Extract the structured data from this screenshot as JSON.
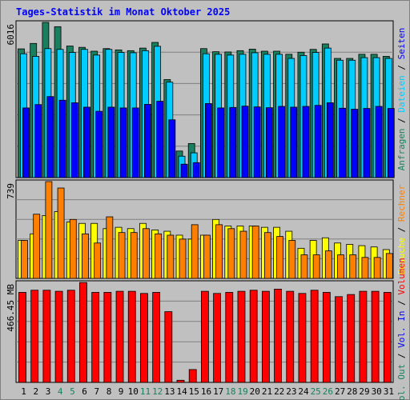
{
  "chart_data": [
    {
      "type": "bar",
      "title": "Tages-Statistik im Monat Oktober 2025",
      "ylabel_max": "6016",
      "ylim": [
        0,
        6016
      ],
      "categories": [
        "1",
        "2",
        "3",
        "4",
        "5",
        "6",
        "7",
        "8",
        "9",
        "10",
        "11",
        "12",
        "13",
        "14",
        "15",
        "16",
        "17",
        "18",
        "19",
        "20",
        "21",
        "22",
        "23",
        "24",
        "25",
        "26",
        "27",
        "28",
        "29",
        "30",
        "31"
      ],
      "weekend_days": [
        "4",
        "5",
        "11",
        "12",
        "18",
        "19",
        "25",
        "26"
      ],
      "grid": true,
      "series": [
        {
          "name": "Anfragen",
          "color": "#1a7f5f",
          "values": [
            4990,
            5200,
            6016,
            5850,
            5100,
            5050,
            4900,
            5000,
            4950,
            4920,
            5020,
            5240,
            3800,
            1030,
            1320,
            5000,
            4880,
            4870,
            4920,
            4980,
            4900,
            4900,
            4780,
            4860,
            4970,
            5180,
            4620,
            4620,
            4780,
            4780,
            4700
          ]
        },
        {
          "name": "Dateien",
          "color": "#00ccff",
          "values": [
            4800,
            4700,
            5000,
            4970,
            4850,
            4970,
            4750,
            4970,
            4850,
            4840,
            4920,
            5090,
            3700,
            830,
            960,
            4800,
            4780,
            4750,
            4780,
            4840,
            4780,
            4780,
            4620,
            4730,
            4850,
            5020,
            4550,
            4550,
            4650,
            4650,
            4620
          ]
        },
        {
          "name": "Seiten",
          "color": "#0000ff",
          "values": [
            2700,
            2830,
            3140,
            3000,
            2900,
            2730,
            2570,
            2730,
            2700,
            2700,
            2840,
            2960,
            2240,
            520,
            580,
            2870,
            2700,
            2720,
            2770,
            2740,
            2710,
            2760,
            2730,
            2760,
            2800,
            2900,
            2690,
            2650,
            2680,
            2760,
            2680
          ]
        }
      ]
    },
    {
      "type": "bar",
      "ylabel_max": "739",
      "ylim": [
        0,
        739
      ],
      "grid": true,
      "series": [
        {
          "name": "Besuche",
          "color": "#ffff00",
          "values": [
            290,
            340,
            480,
            510,
            430,
            420,
            420,
            380,
            390,
            380,
            420,
            370,
            360,
            330,
            300,
            330,
            450,
            400,
            400,
            400,
            390,
            390,
            360,
            230,
            290,
            310,
            270,
            260,
            250,
            240,
            220
          ]
        },
        {
          "name": "Rechner",
          "color": "#ff8000",
          "values": [
            290,
            490,
            739,
            690,
            450,
            340,
            270,
            470,
            350,
            350,
            380,
            340,
            330,
            300,
            410,
            330,
            410,
            380,
            360,
            400,
            350,
            320,
            290,
            180,
            180,
            210,
            180,
            180,
            160,
            160,
            190
          ]
        }
      ]
    },
    {
      "type": "bar",
      "ylabel_max": "466.45 MB",
      "ylim": [
        0,
        466.45
      ],
      "grid": true,
      "series": [
        {
          "name": "Volumen",
          "color": "#ff0000",
          "values": [
            420,
            430,
            430,
            425,
            430,
            466,
            420,
            420,
            425,
            425,
            415,
            420,
            330,
            10,
            60,
            425,
            415,
            420,
            425,
            430,
            425,
            435,
            425,
            415,
            430,
            420,
            400,
            410,
            425,
            425,
            420
          ]
        }
      ]
    }
  ],
  "legend_right": [
    {
      "series": [
        "Anfragen",
        "Dateien",
        "Seiten"
      ],
      "colors": [
        "#1a7f5f",
        "#00ccff",
        "#0000ff"
      ]
    },
    {
      "series": [
        "Besuche",
        "Rechner"
      ],
      "colors": [
        "#ffff00",
        "#ff8000"
      ]
    },
    {
      "series": [
        "Vol. Out",
        "Vol. In",
        "Volumen"
      ],
      "colors": [
        "#1a7f5f",
        "#0000ff",
        "#ff0000"
      ]
    }
  ],
  "colors": {
    "title": "#0000ff",
    "weekday_label": "#000000",
    "weekend_label": "#1a7f5f",
    "panel_bg": "#c0c0c0",
    "grid": "#808080"
  }
}
